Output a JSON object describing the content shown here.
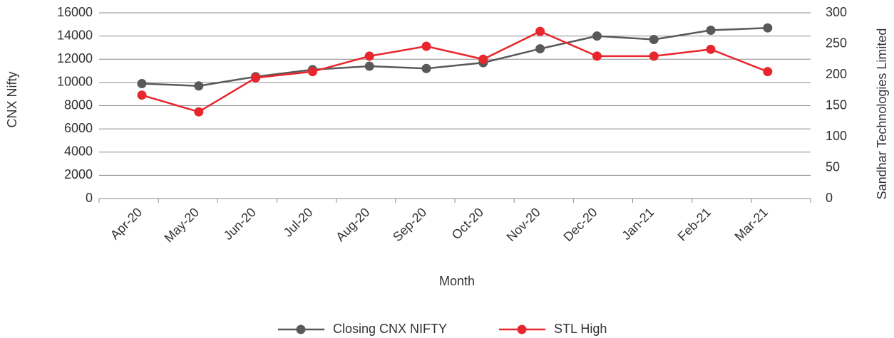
{
  "chart_data": {
    "type": "line",
    "x_label": "Month",
    "y_label": "CNX Nifty",
    "y2_label": "Sandhar Technologies Limited",
    "categories": [
      "Apr-20",
      "May-20",
      "Jun-20",
      "Jul-20",
      "Aug-20",
      "Sep-20",
      "Oct-20",
      "Nov-20",
      "Dec-20",
      "Jan-21",
      "Feb-21",
      "Mar-21"
    ],
    "series": [
      {
        "name": "Closing CNX NIFTY",
        "color": "#595959",
        "values": [
          9900,
          9700,
          10500,
          11100,
          11400,
          11200,
          11700,
          12900,
          14000,
          13700,
          14500,
          14700
        ]
      },
      {
        "name": "STL High",
        "color": "#e8262d",
        "axis": "y2",
        "values": [
          167,
          140,
          195,
          205,
          230,
          246,
          225,
          270,
          230,
          230,
          241,
          205
        ]
      }
    ],
    "ylim": [
      0,
      16000
    ],
    "yticks": [
      0,
      2000,
      4000,
      6000,
      8000,
      10000,
      12000,
      14000,
      16000
    ],
    "y2lim": [
      0,
      300
    ],
    "y2ticks": [
      0,
      50,
      100,
      150,
      200,
      250,
      300
    ],
    "grid": true,
    "legend": "bottom"
  }
}
